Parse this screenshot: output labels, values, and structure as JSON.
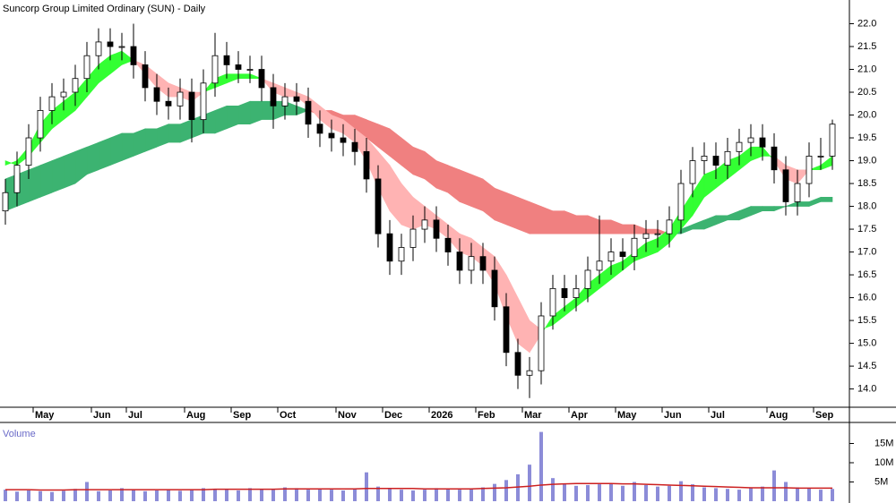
{
  "chart_data": {
    "type": "candlestick",
    "title": "Suncorp Group Limited Ordinary (SUN) - Daily",
    "categories": [
      null,
      null,
      null,
      "May",
      null,
      null,
      null,
      null,
      "Jun",
      null,
      null,
      "Jul",
      null,
      null,
      null,
      null,
      "Aug",
      null,
      null,
      null,
      "Sep",
      null,
      null,
      null,
      "Oct",
      null,
      null,
      null,
      null,
      "Nov",
      null,
      null,
      null,
      "Dec",
      null,
      null,
      null,
      "2026",
      null,
      null,
      null,
      "Feb",
      null,
      null,
      null,
      "Mar",
      null,
      null,
      null,
      "Apr",
      null,
      null,
      null,
      "May",
      null,
      null,
      null,
      "Jun",
      null,
      null,
      null,
      "Jul",
      null,
      null,
      null,
      null,
      "Aug",
      null,
      null,
      null,
      "Sep",
      null
    ],
    "open": [
      17.9,
      18.3,
      18.9,
      19.5,
      20.1,
      20.4,
      20.5,
      20.8,
      21.3,
      21.6,
      21.5,
      21.5,
      21.1,
      20.6,
      20.3,
      20.2,
      20.5,
      19.9,
      20.7,
      21.3,
      21.1,
      21.0,
      21.0,
      20.6,
      20.2,
      20.4,
      20.3,
      19.8,
      19.6,
      19.5,
      19.4,
      19.2,
      18.6,
      17.4,
      16.8,
      17.1,
      17.5,
      17.7,
      17.3,
      17.0,
      16.6,
      16.9,
      16.6,
      15.8,
      14.8,
      14.3,
      14.4,
      15.6,
      16.2,
      16.0,
      16.2,
      16.6,
      16.8,
      17.0,
      16.9,
      17.3,
      17.4,
      17.4,
      17.7,
      18.5,
      19.0,
      19.1,
      18.9,
      19.2,
      19.4,
      19.5,
      19.3,
      18.8,
      18.1,
      18.5,
      19.1,
      19.1
    ],
    "high": [
      18.6,
      19.2,
      19.8,
      20.4,
      20.7,
      20.8,
      21.1,
      21.6,
      21.9,
      21.9,
      21.8,
      22.0,
      21.4,
      20.9,
      20.6,
      20.8,
      20.8,
      21.0,
      21.8,
      21.6,
      21.4,
      21.3,
      21.3,
      20.9,
      20.7,
      20.7,
      20.6,
      20.1,
      19.9,
      19.8,
      19.7,
      19.5,
      18.9,
      17.7,
      17.4,
      17.8,
      18.0,
      18.0,
      17.6,
      17.3,
      17.2,
      17.2,
      16.9,
      16.1,
      15.1,
      14.7,
      15.9,
      16.5,
      16.5,
      16.5,
      16.9,
      17.8,
      17.3,
      17.3,
      17.6,
      17.7,
      17.7,
      18.0,
      18.8,
      19.3,
      19.4,
      19.4,
      19.5,
      19.7,
      19.8,
      19.8,
      19.6,
      19.1,
      18.8,
      19.4,
      19.5,
      19.9
    ],
    "low": [
      17.6,
      18.0,
      18.6,
      19.2,
      19.8,
      20.1,
      20.2,
      20.5,
      21.0,
      21.2,
      21.2,
      20.8,
      20.3,
      20.0,
      19.9,
      19.9,
      19.4,
      19.6,
      20.4,
      20.8,
      20.7,
      20.7,
      20.3,
      19.7,
      19.9,
      20.0,
      19.5,
      19.3,
      19.2,
      19.1,
      18.9,
      18.3,
      17.1,
      16.5,
      16.5,
      16.8,
      17.2,
      17.0,
      16.7,
      16.3,
      16.3,
      16.3,
      15.5,
      14.5,
      14.0,
      13.8,
      14.1,
      15.3,
      15.7,
      15.7,
      15.9,
      16.3,
      16.5,
      16.6,
      16.6,
      17.0,
      17.1,
      17.1,
      17.4,
      18.2,
      18.7,
      18.6,
      18.6,
      18.9,
      19.1,
      19.0,
      18.5,
      17.8,
      17.8,
      18.2,
      18.8,
      18.8
    ],
    "close": [
      18.3,
      18.9,
      19.5,
      20.1,
      20.4,
      20.5,
      20.8,
      21.3,
      21.6,
      21.5,
      21.5,
      21.1,
      20.6,
      20.3,
      20.2,
      20.5,
      19.9,
      20.7,
      21.3,
      21.1,
      21.0,
      21.0,
      20.6,
      20.2,
      20.4,
      20.3,
      19.8,
      19.6,
      19.5,
      19.4,
      19.2,
      18.6,
      17.4,
      16.8,
      17.1,
      17.5,
      17.7,
      17.3,
      17.0,
      16.6,
      16.9,
      16.6,
      15.8,
      14.8,
      14.3,
      14.4,
      15.6,
      16.2,
      16.0,
      16.2,
      16.6,
      16.8,
      17.0,
      16.9,
      17.3,
      17.4,
      17.4,
      17.7,
      18.5,
      19.0,
      19.1,
      18.9,
      19.2,
      19.4,
      19.5,
      19.3,
      18.8,
      18.1,
      18.5,
      19.1,
      19.1,
      19.8
    ],
    "ylim": [
      13.6,
      22.5
    ],
    "yticks": [
      {
        "value": 14,
        "label": "14.0"
      },
      {
        "value": 14.5,
        "label": "14.5"
      },
      {
        "value": 15,
        "label": "15.0"
      },
      {
        "value": 15.5,
        "label": "15.5"
      },
      {
        "value": 16,
        "label": "16.0"
      },
      {
        "value": 16.5,
        "label": "16.5"
      },
      {
        "value": 17,
        "label": "17.0"
      },
      {
        "value": 17.5,
        "label": "17.5"
      },
      {
        "value": 18,
        "label": "18.0"
      },
      {
        "value": 18.5,
        "label": "18.5"
      },
      {
        "value": 19,
        "label": "19.0"
      },
      {
        "value": 19.5,
        "label": "19.5"
      },
      {
        "value": 20,
        "label": "20.0"
      },
      {
        "value": 20.5,
        "label": "20.5"
      },
      {
        "value": 21,
        "label": "21.0"
      },
      {
        "value": 21.5,
        "label": "21.5"
      },
      {
        "value": 22,
        "label": "22.0"
      }
    ],
    "ribbons": [
      {
        "bull_color": "#3cb371",
        "bear_color": "#f08080",
        "fast": [
          18.6,
          18.7,
          18.8,
          18.9,
          19.0,
          19.1,
          19.2,
          19.3,
          19.4,
          19.5,
          19.6,
          19.6,
          19.7,
          19.7,
          19.8,
          19.8,
          19.9,
          20.0,
          20.1,
          20.2,
          20.2,
          20.3,
          20.3,
          20.3,
          20.3,
          20.2,
          20.1,
          20.0,
          19.9,
          19.8,
          19.7,
          19.5,
          19.3,
          19.1,
          18.9,
          18.7,
          18.6,
          18.4,
          18.3,
          18.1,
          18.0,
          17.9,
          17.7,
          17.6,
          17.5,
          17.4,
          17.4,
          17.4,
          17.4,
          17.4,
          17.4,
          17.4,
          17.4,
          17.4,
          17.4,
          17.4,
          17.4,
          17.4,
          17.5,
          17.6,
          17.7,
          17.8,
          17.8,
          17.9,
          18.0,
          18.0,
          18.0,
          18.0,
          18.1,
          18.1,
          18.2,
          18.2
        ],
        "slow": [
          17.9,
          18.0,
          18.1,
          18.2,
          18.3,
          18.4,
          18.5,
          18.7,
          18.8,
          18.9,
          19.0,
          19.1,
          19.2,
          19.3,
          19.4,
          19.4,
          19.5,
          19.6,
          19.6,
          19.7,
          19.8,
          19.8,
          19.9,
          19.9,
          20.0,
          20.0,
          20.1,
          20.1,
          20.1,
          20.0,
          20.0,
          19.9,
          19.8,
          19.7,
          19.5,
          19.3,
          19.2,
          19.0,
          18.9,
          18.8,
          18.7,
          18.6,
          18.4,
          18.3,
          18.2,
          18.1,
          18.0,
          17.9,
          17.9,
          17.8,
          17.8,
          17.7,
          17.7,
          17.6,
          17.6,
          17.5,
          17.5,
          17.4,
          17.4,
          17.5,
          17.5,
          17.6,
          17.7,
          17.7,
          17.8,
          17.9,
          17.9,
          18.0,
          18.0,
          18.0,
          18.1,
          18.1
        ]
      },
      {
        "bull_color": "#33ff33",
        "bear_color": "#ffb3b3",
        "fast": [
          18.9,
          19.0,
          19.3,
          19.8,
          20.1,
          20.3,
          20.5,
          20.8,
          21.1,
          21.3,
          21.4,
          21.2,
          20.9,
          20.6,
          20.4,
          20.4,
          20.3,
          20.5,
          20.8,
          20.9,
          20.9,
          20.9,
          20.8,
          20.5,
          20.4,
          20.4,
          20.2,
          19.9,
          19.7,
          19.6,
          19.4,
          19.0,
          18.4,
          17.9,
          17.6,
          17.5,
          17.6,
          17.5,
          17.3,
          17.0,
          16.9,
          16.7,
          16.3,
          15.6,
          15.0,
          14.8,
          15.2,
          15.6,
          15.8,
          16.0,
          16.3,
          16.5,
          16.7,
          16.8,
          17.0,
          17.2,
          17.3,
          17.5,
          17.9,
          18.3,
          18.7,
          18.8,
          19.0,
          19.1,
          19.3,
          19.3,
          19.0,
          18.6,
          18.5,
          18.8,
          18.9,
          19.1
        ],
        "slow": [
          19.0,
          18.9,
          19.1,
          19.4,
          19.7,
          19.9,
          20.1,
          20.4,
          20.7,
          20.9,
          21.1,
          21.2,
          21.1,
          20.9,
          20.7,
          20.6,
          20.5,
          20.5,
          20.6,
          20.7,
          20.8,
          20.8,
          20.8,
          20.7,
          20.6,
          20.5,
          20.4,
          20.2,
          20.0,
          19.9,
          19.7,
          19.5,
          19.2,
          18.9,
          18.5,
          18.2,
          18.0,
          17.8,
          17.6,
          17.4,
          17.3,
          17.1,
          16.9,
          16.5,
          16.0,
          15.5,
          15.3,
          15.4,
          15.6,
          15.8,
          16.0,
          16.2,
          16.4,
          16.6,
          16.8,
          16.9,
          17.0,
          17.2,
          17.5,
          17.8,
          18.2,
          18.4,
          18.6,
          18.8,
          19.0,
          19.1,
          19.1,
          18.9,
          18.8,
          18.8,
          18.8,
          18.9
        ]
      }
    ],
    "volume": {
      "label": "Volume",
      "color": "#8c8cd8",
      "values": [
        3.0,
        2.5,
        2.8,
        2.6,
        2.4,
        2.7,
        3.2,
        5.0,
        2.6,
        2.8,
        3.4,
        3.0,
        2.6,
        2.8,
        3.1,
        2.7,
        3.0,
        3.4,
        3.2,
        3.0,
        2.8,
        3.4,
        3.2,
        3.0,
        3.6,
        3.4,
        3.0,
        3.3,
        3.0,
        2.8,
        3.2,
        7.5,
        3.8,
        3.4,
        3.0,
        2.8,
        3.0,
        3.4,
        3.1,
        3.0,
        3.3,
        3.6,
        4.5,
        5.5,
        7.0,
        9.5,
        18.0,
        6.0,
        4.5,
        4.0,
        4.2,
        4.4,
        4.6,
        4.0,
        5.0,
        4.2,
        3.8,
        4.0,
        5.2,
        4.4,
        3.6,
        3.4,
        3.2,
        3.0,
        3.4,
        3.8,
        8.0,
        5.0,
        3.6,
        3.4,
        3.0,
        3.2
      ],
      "average": {
        "color": "#cc2020",
        "values": [
          3.0,
          3.0,
          3.0,
          2.9,
          2.9,
          2.9,
          3.0,
          3.0,
          3.0,
          3.0,
          3.0,
          3.0,
          3.0,
          3.0,
          3.0,
          3.0,
          3.0,
          3.0,
          3.1,
          3.1,
          3.1,
          3.1,
          3.1,
          3.1,
          3.2,
          3.2,
          3.2,
          3.2,
          3.2,
          3.2,
          3.2,
          3.3,
          3.3,
          3.3,
          3.3,
          3.3,
          3.2,
          3.2,
          3.2,
          3.2,
          3.2,
          3.3,
          3.4,
          3.5,
          3.7,
          3.9,
          4.2,
          4.4,
          4.5,
          4.6,
          4.6,
          4.6,
          4.6,
          4.5,
          4.5,
          4.4,
          4.3,
          4.2,
          4.1,
          4.0,
          3.9,
          3.8,
          3.7,
          3.6,
          3.5,
          3.5,
          3.5,
          3.5,
          3.4,
          3.4,
          3.4,
          3.4
        ]
      },
      "ylim": [
        0,
        20
      ],
      "yticks": [
        {
          "value": 5,
          "label": "5M"
        },
        {
          "value": 10,
          "label": "10M"
        },
        {
          "value": 15,
          "label": "15M"
        }
      ]
    }
  }
}
